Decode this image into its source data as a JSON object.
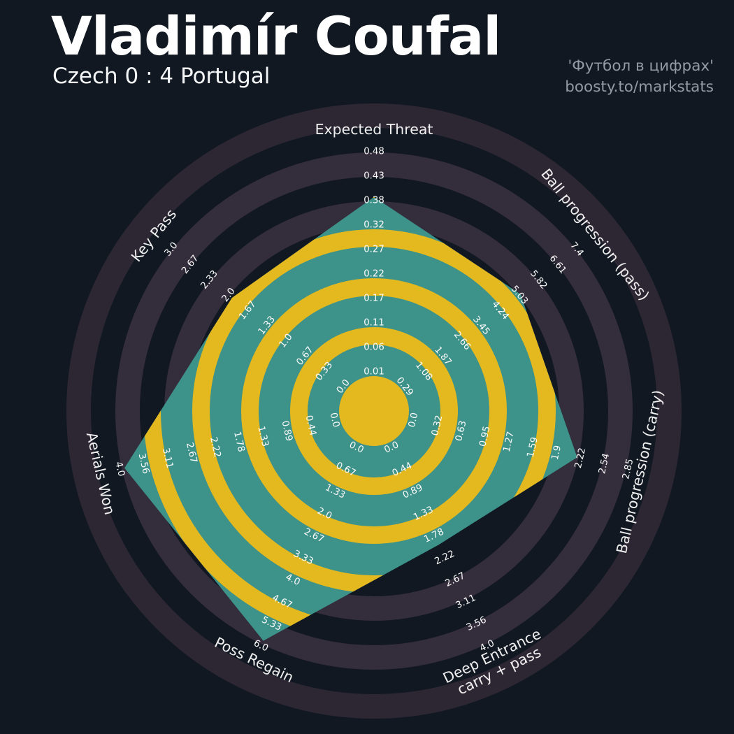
{
  "header": {
    "title": "Vladimír Coufal",
    "subtitle": "Czech 0 : 4 Portugal"
  },
  "watermark": {
    "line1": "'Футбол в цифрах'",
    "line2": "boosty.to/markstats"
  },
  "colors": {
    "background": "#111822",
    "ring_dark": "#342d3c",
    "ring_dark_outer": "#2d2734",
    "ring_yellow": "#e4b81f",
    "polygon_teal": "#3d9289",
    "tick_text": "#fbfbfb",
    "axis_title_text": "#efefef",
    "title_text": "#ffffff",
    "watermark_text": "#949aa4"
  },
  "chart_data": {
    "type": "radar",
    "title": "Vladimír Coufal",
    "subtitle": "Czech 0 : 4 Portugal",
    "legend_position": "none",
    "grid": "concentric-rings",
    "axes": [
      {
        "label": "Expected Threat",
        "ticks": [
          "0.01",
          "0.06",
          "0.11",
          "0.17",
          "0.22",
          "0.27",
          "0.32",
          "0.38",
          "0.43",
          "0.48"
        ],
        "axis_min": 0.01,
        "axis_max": 0.48,
        "value": 0.385
      },
      {
        "label": "Ball progression (pass)",
        "ticks": [
          "0.29",
          "1.08",
          "1.87",
          "2.66",
          "3.45",
          "4.24",
          "5.03",
          "5.82",
          "6.61",
          "7.4"
        ],
        "axis_min": 0.29,
        "axis_max": 7.4,
        "value": 5.1
      },
      {
        "label": "Ball progression (carry)",
        "ticks": [
          "0.0",
          "0.32",
          "0.63",
          "0.95",
          "1.27",
          "1.59",
          "1.9",
          "2.22",
          "2.54",
          "2.85"
        ],
        "axis_min": 0.0,
        "axis_max": 2.85,
        "value": 2.2
      },
      {
        "label": "Deep Entrance\ncarry + pass",
        "ticks": [
          "0.0",
          "0.44",
          "0.89",
          "1.33",
          "1.78",
          "2.22",
          "2.67",
          "3.11",
          "3.56",
          "4.0"
        ],
        "axis_min": 0.0,
        "axis_max": 4.0,
        "value": 2.0
      },
      {
        "label": "Poss Regain",
        "ticks": [
          "0.0",
          "0.67",
          "1.33",
          "2.0",
          "2.67",
          "3.33",
          "4.0",
          "4.67",
          "5.33",
          "6.0"
        ],
        "axis_min": 0.0,
        "axis_max": 6.0,
        "value": 5.9
      },
      {
        "label": "Aerials Won",
        "ticks": [
          "0.0",
          "0.44",
          "0.89",
          "1.33",
          "1.78",
          "2.22",
          "2.67",
          "3.11",
          "3.56",
          "4.0"
        ],
        "axis_min": 0.0,
        "axis_max": 4.0,
        "value": 3.95
      },
      {
        "label": "Key Pass",
        "ticks": [
          "0.0",
          "0.33",
          "0.67",
          "1.0",
          "1.33",
          "1.67",
          "2.0",
          "2.33",
          "2.67",
          "3.0"
        ],
        "axis_min": 0.0,
        "axis_max": 3.0,
        "value": 1.95
      }
    ]
  }
}
